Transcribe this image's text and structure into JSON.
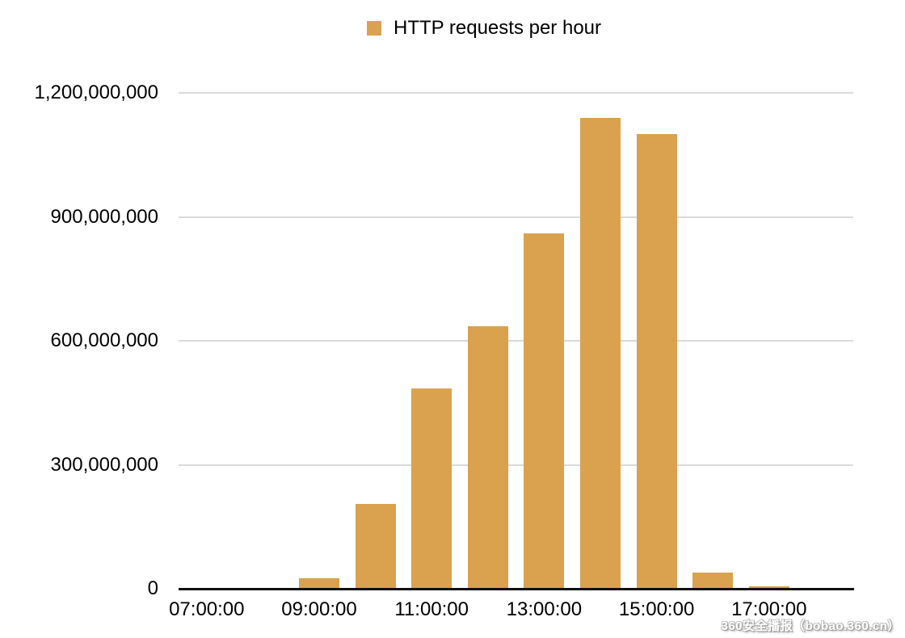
{
  "chart_data": {
    "type": "bar",
    "title": "",
    "legend_position": "top",
    "grid": "horizontal",
    "bar_color": "#DAA24E",
    "grid_color": "#DADADA",
    "axis_color": "#111111",
    "categories": [
      "07:00:00",
      "08:00:00",
      "09:00:00",
      "10:00:00",
      "11:00:00",
      "12:00:00",
      "13:00:00",
      "14:00:00",
      "15:00:00",
      "16:00:00",
      "17:00:00"
    ],
    "series": [
      {
        "name": "HTTP requests per hour",
        "values": [
          0,
          0,
          25000000,
          205000000,
          485000000,
          635000000,
          860000000,
          1140000000,
          1100000000,
          40000000,
          6000000
        ]
      }
    ],
    "ylim": [
      0,
      1200000000
    ],
    "y_ticks": [
      {
        "value": 0,
        "label": "0"
      },
      {
        "value": 300000000,
        "label": "300,000,000"
      },
      {
        "value": 600000000,
        "label": "600,000,000"
      },
      {
        "value": 900000000,
        "label": "900,000,000"
      },
      {
        "value": 1200000000,
        "label": "1,200,000,000"
      }
    ],
    "x_tick_labels": [
      "07:00:00",
      "09:00:00",
      "11:00:00",
      "13:00:00",
      "15:00:00",
      "17:00:00"
    ]
  },
  "watermark": {
    "text": "360安全播报（bobao.360.cn）"
  }
}
